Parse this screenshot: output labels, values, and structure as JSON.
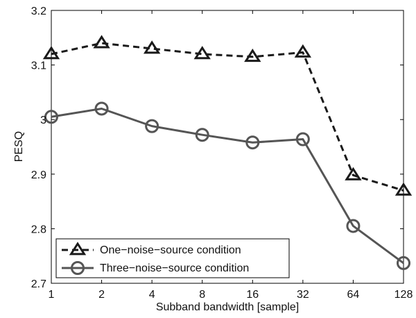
{
  "chart_data": {
    "type": "line",
    "xlabel": "Subband bandwidth [sample]",
    "ylabel": "PESQ",
    "categories": [
      "1",
      "2",
      "4",
      "8",
      "16",
      "32",
      "64",
      "128"
    ],
    "ylim": [
      2.7,
      3.2
    ],
    "yticks": [
      "2.7",
      "2.8",
      "2.9",
      "3",
      "3.1",
      "3.2"
    ],
    "grid": false,
    "legend_position": "bottom-left",
    "series": [
      {
        "name": "One−noise−source condition",
        "values": [
          3.12,
          3.14,
          3.13,
          3.12,
          3.115,
          3.123,
          2.898,
          2.87
        ],
        "marker": "triangle",
        "line_style": "dashed",
        "color": "#1a1a1a"
      },
      {
        "name": "Three−noise−source condition",
        "values": [
          3.005,
          3.02,
          2.988,
          2.972,
          2.958,
          2.964,
          2.805,
          2.737
        ],
        "marker": "circle",
        "line_style": "solid",
        "color": "#555555"
      }
    ]
  }
}
